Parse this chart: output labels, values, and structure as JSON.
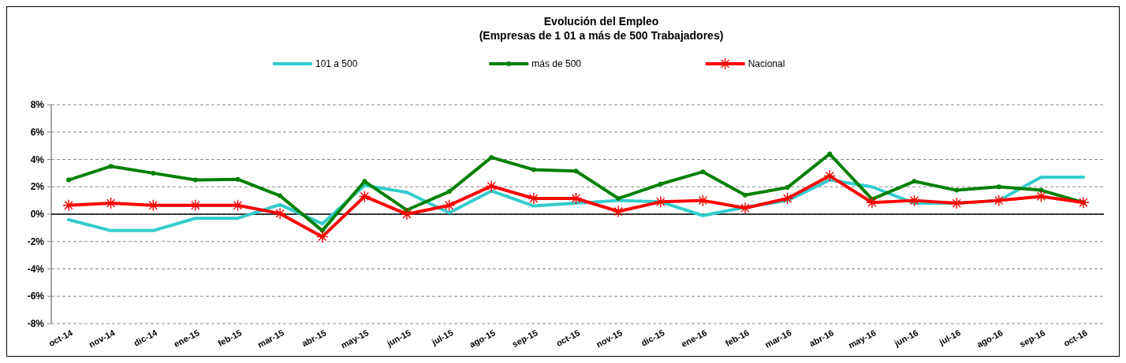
{
  "chart_data": {
    "type": "line",
    "title": "Evolución del Empleo",
    "subtitle": "(Empresas de 1 01 a más de 500 Trabajadores)",
    "categories": [
      "oct-14",
      "nov-14",
      "dic-14",
      "ene-15",
      "feb-15",
      "mar-15",
      "abr-15",
      "may-15",
      "jun-15",
      "jul-15",
      "ago-15",
      "sep-15",
      "oct-15",
      "nov-15",
      "dic-15",
      "ene-16",
      "feb-16",
      "mar-16",
      "abr-16",
      "may-16",
      "jun-16",
      "jul-16",
      "ago-16",
      "sep-16",
      "oct-16"
    ],
    "series": [
      {
        "name": "101 a 500",
        "color": "#33cccc",
        "marker": "none",
        "values": [
          -0.4,
          -1.2,
          -1.2,
          -0.3,
          -0.3,
          0.7,
          -0.7,
          2.1,
          1.6,
          0.1,
          1.7,
          0.6,
          0.8,
          1.0,
          0.9,
          -0.1,
          0.5,
          1.0,
          2.5,
          2.0,
          0.8,
          0.8,
          1.0,
          2.7,
          2.7
        ]
      },
      {
        "name": "más de 500",
        "color": "#008000",
        "marker": "circle",
        "values": [
          2.5,
          3.5,
          3.0,
          2.5,
          2.55,
          1.35,
          -1.2,
          2.4,
          0.3,
          1.65,
          4.15,
          3.25,
          3.15,
          1.15,
          2.2,
          3.1,
          1.4,
          1.95,
          4.4,
          1.1,
          2.4,
          1.75,
          2.0,
          1.75,
          0.85
        ]
      },
      {
        "name": "Nacional",
        "color": "#ff0000",
        "marker": "star",
        "values": [
          0.65,
          0.8,
          0.65,
          0.65,
          0.65,
          0.05,
          -1.65,
          1.3,
          0.0,
          0.65,
          2.05,
          1.15,
          1.15,
          0.2,
          0.9,
          1.0,
          0.45,
          1.15,
          2.8,
          0.85,
          1.0,
          0.8,
          1.0,
          1.3,
          0.85
        ]
      }
    ],
    "ylim": [
      -8,
      8
    ],
    "yticks": [
      {
        "value": -8,
        "label": "-8%"
      },
      {
        "value": -6,
        "label": "-6%"
      },
      {
        "value": -4,
        "label": "-4%"
      },
      {
        "value": -2,
        "label": "-2%"
      },
      {
        "value": 0,
        "label": "0%"
      },
      {
        "value": 2,
        "label": "2%"
      },
      {
        "value": 4,
        "label": "4%"
      },
      {
        "value": 6,
        "label": "6%"
      },
      {
        "value": 8,
        "label": "8%"
      }
    ],
    "grid": "y",
    "legend": "top",
    "line_style": "solid"
  }
}
